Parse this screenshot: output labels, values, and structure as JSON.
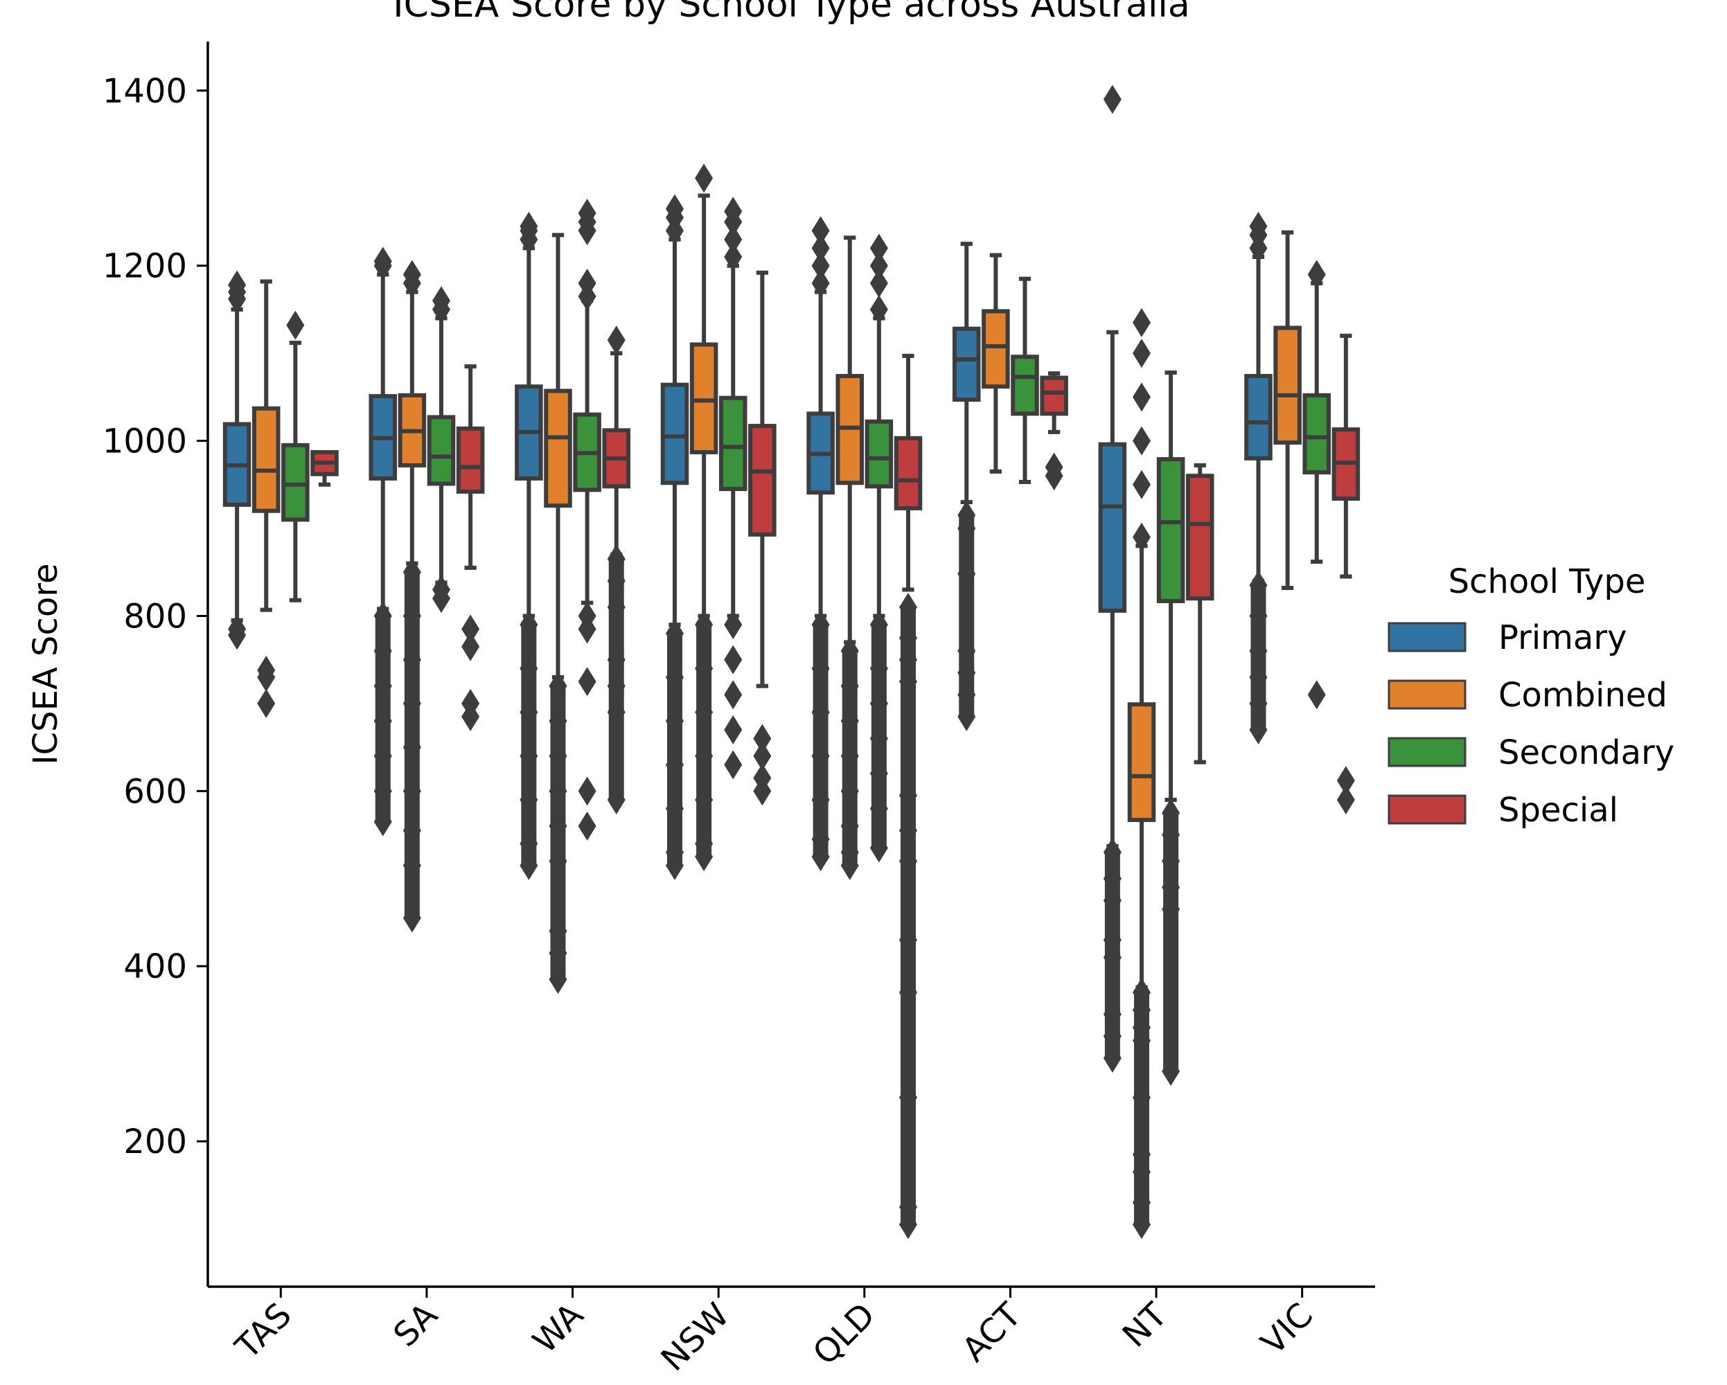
{
  "chart_data": {
    "type": "box",
    "title": "ICSEA Score by School Type across Australia",
    "xlabel": "",
    "ylabel": "ICSEA Score",
    "ylim": [
      34,
      1456
    ],
    "yticks": [
      200,
      400,
      600,
      800,
      1000,
      1200,
      1400
    ],
    "categories": [
      "TAS",
      "SA",
      "WA",
      "NSW",
      "QLD",
      "ACT",
      "NT",
      "VIC"
    ],
    "legend": {
      "title": "School Type",
      "position": "right"
    },
    "colors": {
      "Primary": "#3274a1",
      "Combined": "#e1812c",
      "Secondary": "#3a923a",
      "Special": "#c03d3e",
      "edge": "#3d3d3d"
    },
    "series": [
      {
        "name": "Primary",
        "stats": [
          {
            "category": "TAS",
            "whislo": 795,
            "q1": 927,
            "med": 972,
            "q3": 1019,
            "whishi": 1150,
            "fliers": [
              785,
              778,
              1162,
              1170,
              1178
            ]
          },
          {
            "category": "SA",
            "whislo": 808,
            "q1": 957,
            "med": 1003,
            "q3": 1051,
            "whishi": 1190,
            "fliers": [
              800,
              760,
              720,
              680,
              640,
              600,
              565,
              1200,
              1205
            ]
          },
          {
            "category": "WA",
            "whislo": 800,
            "q1": 957,
            "med": 1010,
            "q3": 1062,
            "whishi": 1220,
            "fliers": [
              790,
              740,
              690,
              640,
              590,
              540,
              515,
              1230,
              1240,
              1245
            ]
          },
          {
            "category": "NSW",
            "whislo": 790,
            "q1": 952,
            "med": 1005,
            "q3": 1064,
            "whishi": 1230,
            "fliers": [
              780,
              730,
              680,
              630,
              580,
              530,
              515,
              1240,
              1255,
              1265
            ]
          },
          {
            "category": "QLD",
            "whislo": 800,
            "q1": 941,
            "med": 985,
            "q3": 1031,
            "whishi": 1170,
            "fliers": [
              790,
              740,
              690,
              640,
              590,
              545,
              525,
              1180,
              1200,
              1220,
              1240
            ]
          },
          {
            "category": "ACT",
            "whislo": 930,
            "q1": 1047,
            "med": 1093,
            "q3": 1128,
            "whishi": 1225,
            "fliers": [
              915,
              900,
              848,
              760,
              735,
              710,
              685
            ]
          },
          {
            "category": "NT",
            "whislo": 537,
            "q1": 806,
            "med": 925,
            "q3": 996,
            "whishi": 1124,
            "fliers": [
              530,
              500,
              475,
              430,
              410,
              345,
              320,
              295,
              1390
            ]
          },
          {
            "category": "VIC",
            "whislo": 840,
            "q1": 980,
            "med": 1021,
            "q3": 1074,
            "whishi": 1210,
            "fliers": [
              835,
              800,
              760,
              730,
              700,
              670,
              1220,
              1235,
              1245
            ]
          }
        ]
      },
      {
        "name": "Combined",
        "stats": [
          {
            "category": "TAS",
            "whislo": 807,
            "q1": 920,
            "med": 966,
            "q3": 1037,
            "whishi": 1182,
            "fliers": [
              738,
              730,
              700
            ]
          },
          {
            "category": "SA",
            "whislo": 860,
            "q1": 972,
            "med": 1011,
            "q3": 1052,
            "whishi": 1170,
            "fliers": [
              850,
              800,
              750,
              700,
              650,
              600,
              555,
              515,
              455,
              1180,
              1190
            ]
          },
          {
            "category": "WA",
            "whislo": 730,
            "q1": 926,
            "med": 1004,
            "q3": 1057,
            "whishi": 1235,
            "fliers": [
              720,
              680,
              640,
              600,
              560,
              520,
              440,
              415,
              385
            ]
          },
          {
            "category": "NSW",
            "whislo": 800,
            "q1": 987,
            "med": 1046,
            "q3": 1110,
            "whishi": 1280,
            "fliers": [
              790,
              740,
              690,
              640,
              590,
              540,
              525,
              1300
            ]
          },
          {
            "category": "QLD",
            "whislo": 770,
            "q1": 952,
            "med": 1015,
            "q3": 1074,
            "whishi": 1232,
            "fliers": [
              760,
              720,
              680,
              640,
              600,
              560,
              530,
              515
            ]
          },
          {
            "category": "ACT",
            "whislo": 965,
            "q1": 1062,
            "med": 1108,
            "q3": 1148,
            "whishi": 1212,
            "fliers": []
          },
          {
            "category": "NT",
            "whislo": 376,
            "q1": 567,
            "med": 617,
            "q3": 699,
            "whishi": 880,
            "fliers": [
              370,
              350,
              330,
              315,
              250,
              185,
              165,
              130,
              105,
              890,
              950,
              1000,
              1050,
              1100,
              1135
            ]
          },
          {
            "category": "VIC",
            "whislo": 832,
            "q1": 998,
            "med": 1052,
            "q3": 1129,
            "whishi": 1238,
            "fliers": []
          }
        ]
      },
      {
        "name": "Secondary",
        "stats": [
          {
            "category": "TAS",
            "whislo": 818,
            "q1": 910,
            "med": 950,
            "q3": 995,
            "whishi": 1112,
            "fliers": [
              1132
            ]
          },
          {
            "category": "SA",
            "whislo": 838,
            "q1": 951,
            "med": 982,
            "q3": 1027,
            "whishi": 1140,
            "fliers": [
              830,
              820,
              1150,
              1160
            ]
          },
          {
            "category": "WA",
            "whislo": 815,
            "q1": 944,
            "med": 986,
            "q3": 1030,
            "whishi": 1160,
            "fliers": [
              800,
              785,
              725,
              600,
              560,
              1165,
              1180,
              1240,
              1250,
              1260
            ]
          },
          {
            "category": "NSW",
            "whislo": 800,
            "q1": 945,
            "med": 993,
            "q3": 1049,
            "whishi": 1200,
            "fliers": [
              790,
              750,
              710,
              670,
              630,
              1210,
              1230,
              1250,
              1262
            ]
          },
          {
            "category": "QLD",
            "whislo": 800,
            "q1": 948,
            "med": 980,
            "q3": 1022,
            "whishi": 1140,
            "fliers": [
              790,
              740,
              700,
              660,
              620,
              580,
              535,
              1150,
              1180,
              1200,
              1220
            ]
          },
          {
            "category": "ACT",
            "whislo": 953,
            "q1": 1031,
            "med": 1073,
            "q3": 1096,
            "whishi": 1185,
            "fliers": []
          },
          {
            "category": "NT",
            "whislo": 590,
            "q1": 817,
            "med": 907,
            "q3": 979,
            "whishi": 1078,
            "fliers": [
              575,
              550,
              520,
              490,
              465,
              280
            ]
          },
          {
            "category": "VIC",
            "whislo": 862,
            "q1": 964,
            "med": 1004,
            "q3": 1052,
            "whishi": 1180,
            "fliers": [
              710,
              1190
            ]
          }
        ]
      },
      {
        "name": "Special",
        "stats": [
          {
            "category": "TAS",
            "whislo": 950,
            "q1": 962,
            "med": 975,
            "q3": 987,
            "whishi": 987,
            "fliers": []
          },
          {
            "category": "SA",
            "whislo": 855,
            "q1": 942,
            "med": 970,
            "q3": 1014,
            "whishi": 1085,
            "fliers": [
              785,
              765,
              700,
              685
            ]
          },
          {
            "category": "WA",
            "whislo": 870,
            "q1": 948,
            "med": 980,
            "q3": 1012,
            "whishi": 1100,
            "fliers": [
              865,
              840,
              810,
              750,
              720,
              690,
              590,
              1115
            ]
          },
          {
            "category": "NSW",
            "whislo": 720,
            "q1": 893,
            "med": 965,
            "q3": 1017,
            "whishi": 1192,
            "fliers": [
              660,
              640,
              615,
              600
            ]
          },
          {
            "category": "QLD",
            "whislo": 830,
            "q1": 923,
            "med": 955,
            "q3": 1003,
            "whishi": 1097,
            "fliers": [
              810,
              775,
              750,
              725,
              595,
              555,
              520,
              430,
              370,
              250,
              125,
              105
            ]
          },
          {
            "category": "ACT",
            "whislo": 1010,
            "q1": 1031,
            "med": 1055,
            "q3": 1072,
            "whishi": 1077,
            "fliers": [
              970,
              960
            ]
          },
          {
            "category": "NT",
            "whislo": 633,
            "q1": 820,
            "med": 905,
            "q3": 960,
            "whishi": 972,
            "fliers": []
          },
          {
            "category": "VIC",
            "whislo": 845,
            "q1": 934,
            "med": 975,
            "q3": 1013,
            "whishi": 1120,
            "fliers": [
              612,
              590
            ]
          }
        ]
      }
    ]
  }
}
